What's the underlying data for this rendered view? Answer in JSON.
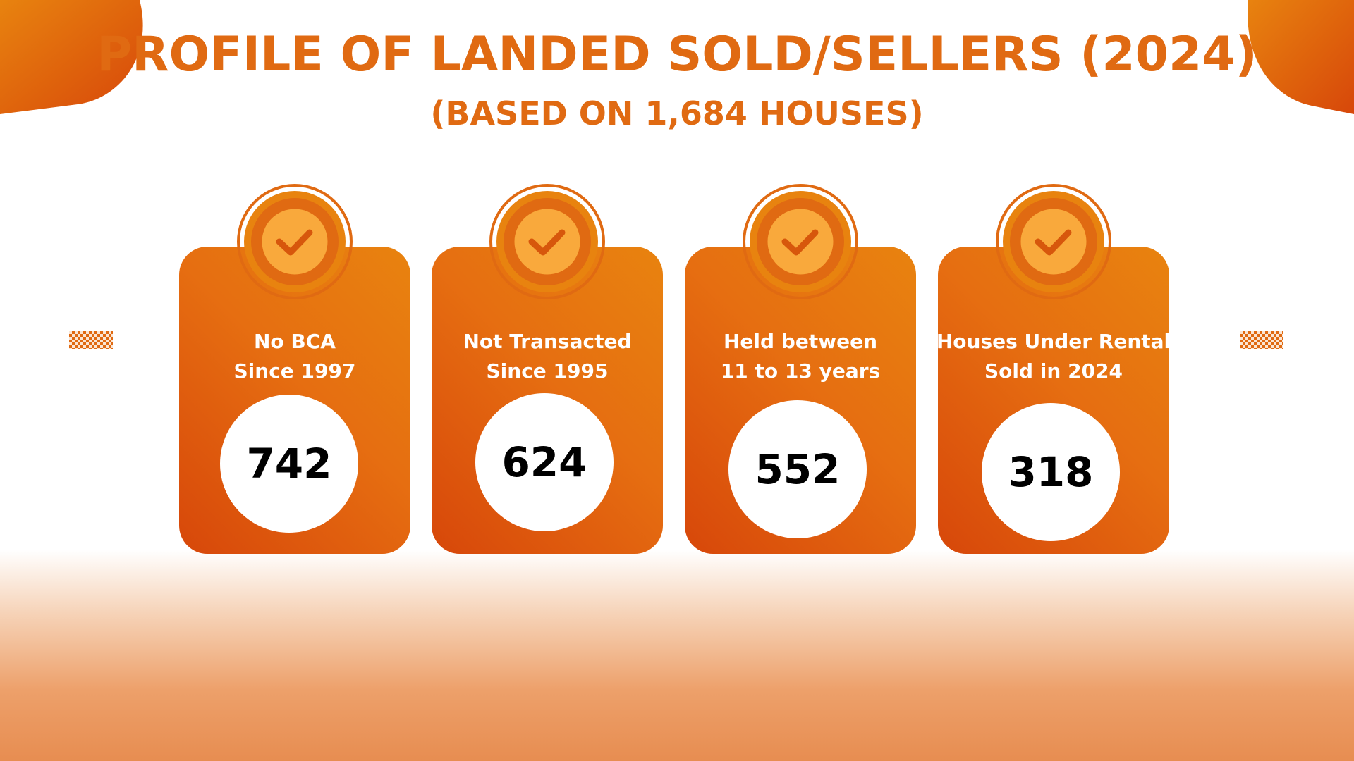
{
  "page": {
    "title": "PROFILE OF LANDED SOLD/SELLERS (2024)",
    "subtitle": "(BASED ON 1,684 HOUSES)"
  },
  "colors": {
    "accent": "#e06a12",
    "card_dark": "#d7470a",
    "card_light": "#e8830f",
    "badge_inner": "#f9a93c"
  },
  "cards": [
    {
      "label_line1": "No BCA",
      "label_line2": "Since 1997",
      "value": "742",
      "icon": "check-icon"
    },
    {
      "label_line1": "Not Transacted",
      "label_line2": "Since 1995",
      "value": "624",
      "icon": "check-icon"
    },
    {
      "label_line1": "Held between",
      "label_line2": "11 to 13 years",
      "value": "552",
      "icon": "check-icon"
    },
    {
      "label_line1": "Houses Under Rental",
      "label_line2": "Sold in 2024",
      "value": "318",
      "icon": "check-icon"
    }
  ]
}
